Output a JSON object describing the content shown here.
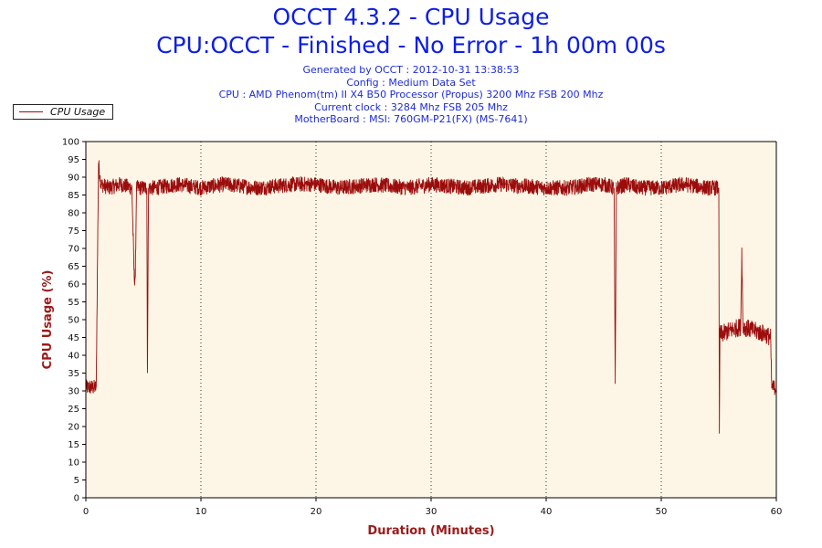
{
  "header": {
    "title": "OCCT 4.3.2 - CPU Usage",
    "subtitle": "CPU:OCCT - Finished - No Error - 1h 00m 00s",
    "info_lines": [
      "Generated by OCCT : 2012-10-31 13:38:53",
      "Config : Medium Data Set",
      "CPU : AMD Phenom(tm) II X4 B50 Processor (Propus) 3200 Mhz FSB 200 Mhz",
      "Current clock : 3284 Mhz FSB 205 Mhz",
      "MotherBoard : MSI: 760GM-P21(FX) (MS-7641)"
    ]
  },
  "legend": {
    "label": "CPU Usage",
    "position": "top-left"
  },
  "colors": {
    "series": "#9b0d0d",
    "plot_bg": "#fdf6e6",
    "axis_label": "#9b1a1a",
    "title": "#0c1ee6"
  },
  "chart_data": {
    "type": "line",
    "xlabel": "Duration (Minutes)",
    "ylabel": "CPU Usage (%)",
    "xlim": [
      0,
      60
    ],
    "ylim": [
      0,
      100
    ],
    "xticks": [
      0,
      10,
      20,
      30,
      40,
      50,
      60
    ],
    "yticks": [
      0,
      5,
      10,
      15,
      20,
      25,
      30,
      35,
      40,
      45,
      50,
      55,
      60,
      65,
      70,
      75,
      80,
      85,
      90,
      95,
      100
    ],
    "grid": {
      "vertical": true,
      "horizontal": false
    },
    "series": [
      {
        "name": "CPU Usage",
        "color": "#9b0d0d",
        "x": [
          0,
          0.5,
          0.9,
          1.1,
          1.3,
          2,
          3,
          4,
          4.2,
          4.3,
          4.4,
          5,
          5.3,
          5.35,
          5.45,
          6,
          8,
          10,
          12,
          15,
          18,
          20,
          22,
          25,
          28,
          30,
          33,
          36,
          40,
          42,
          44,
          45,
          45.9,
          46,
          46.1,
          47,
          48,
          50,
          52,
          54,
          55,
          55.05,
          55.1,
          55.3,
          56,
          56.9,
          57,
          57.1,
          58,
          59,
          59.5,
          59.6,
          60
        ],
        "y": [
          31,
          31,
          31,
          94,
          88,
          87,
          88,
          87,
          62,
          62,
          87,
          87,
          87,
          35,
          87,
          87,
          88,
          87,
          88,
          87,
          88,
          88,
          87,
          88,
          87,
          88,
          87,
          88,
          87,
          87,
          88,
          88,
          87,
          32,
          87,
          88,
          87,
          87,
          88,
          87,
          87,
          18,
          46,
          46,
          47,
          48,
          69,
          48,
          47,
          46,
          45,
          31,
          31
        ]
      }
    ]
  }
}
